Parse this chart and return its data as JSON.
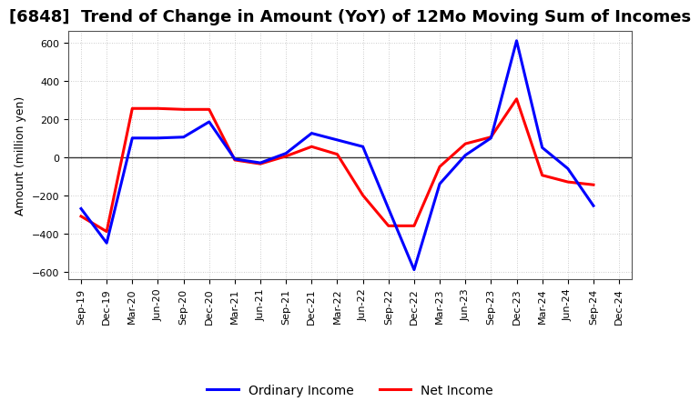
{
  "title": "[6848]  Trend of Change in Amount (YoY) of 12Mo Moving Sum of Incomes",
  "ylabel": "Amount (million yen)",
  "xlabels": [
    "Sep-19",
    "Dec-19",
    "Mar-20",
    "Jun-20",
    "Sep-20",
    "Dec-20",
    "Mar-21",
    "Jun-21",
    "Sep-21",
    "Dec-21",
    "Mar-22",
    "Jun-22",
    "Sep-22",
    "Dec-22",
    "Mar-23",
    "Jun-23",
    "Sep-23",
    "Dec-23",
    "Mar-24",
    "Jun-24",
    "Sep-24",
    "Dec-24"
  ],
  "ordinary_income": [
    -270,
    -450,
    100,
    100,
    105,
    185,
    -10,
    -30,
    20,
    125,
    90,
    55,
    -270,
    -590,
    -140,
    10,
    100,
    610,
    50,
    -60,
    -255,
    null
  ],
  "net_income": [
    -310,
    -390,
    255,
    255,
    250,
    250,
    -15,
    -35,
    5,
    55,
    15,
    -200,
    -360,
    -360,
    -50,
    70,
    105,
    305,
    -95,
    -130,
    -145,
    null
  ],
  "ordinary_color": "#0000ff",
  "net_color": "#ff0000",
  "ylim": [
    -640,
    660
  ],
  "yticks": [
    -600,
    -400,
    -200,
    0,
    200,
    400,
    600
  ],
  "bg_color": "#ffffff",
  "plot_bg_color": "#ffffff",
  "grid_color": "#bbbbbb",
  "line_width": 2.2,
  "title_fontsize": 13,
  "axis_fontsize": 9,
  "tick_fontsize": 8,
  "legend_fontsize": 10
}
